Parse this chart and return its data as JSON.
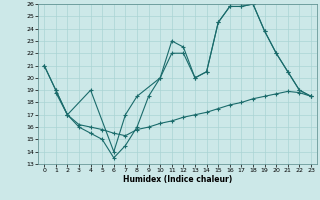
{
  "xlabel": "Humidex (Indice chaleur)",
  "bg_color": "#cce8e8",
  "line_color": "#1a6b6b",
  "grid_color": "#aad4d4",
  "xlim": [
    -0.5,
    23.5
  ],
  "ylim": [
    13,
    26
  ],
  "xticks": [
    0,
    1,
    2,
    3,
    4,
    5,
    6,
    7,
    8,
    9,
    10,
    11,
    12,
    13,
    14,
    15,
    16,
    17,
    18,
    19,
    20,
    21,
    22,
    23
  ],
  "yticks": [
    13,
    14,
    15,
    16,
    17,
    18,
    19,
    20,
    21,
    22,
    23,
    24,
    25,
    26
  ],
  "line1_x": [
    0,
    1,
    2,
    4,
    6,
    7,
    8,
    10,
    11,
    12,
    13,
    14,
    15,
    16,
    17,
    18,
    19,
    20,
    21,
    22,
    23
  ],
  "line1_y": [
    21,
    19,
    17,
    19,
    14,
    17,
    18.5,
    20,
    23,
    22.5,
    20,
    20.5,
    24.5,
    25.8,
    25.8,
    26,
    23.8,
    22,
    20.5,
    19,
    18.5
  ],
  "line2_x": [
    0,
    1,
    2,
    3,
    4,
    5,
    6,
    7,
    8,
    9,
    10,
    11,
    12,
    13,
    14,
    15,
    16,
    17,
    18,
    19,
    20,
    21,
    22,
    23
  ],
  "line2_y": [
    21,
    19,
    17,
    16,
    15.5,
    15,
    13.5,
    14.5,
    16,
    18.5,
    20,
    22,
    22,
    20,
    20.5,
    24.5,
    25.8,
    25.8,
    26,
    23.8,
    22,
    20.5,
    19,
    18.5
  ],
  "line3_x": [
    1,
    2,
    3,
    4,
    5,
    6,
    7,
    8,
    9,
    10,
    11,
    12,
    13,
    14,
    15,
    16,
    17,
    18,
    19,
    20,
    21,
    22,
    23
  ],
  "line3_y": [
    18.8,
    17,
    16.2,
    16,
    15.8,
    15.5,
    15.3,
    15.8,
    16,
    16.3,
    16.5,
    16.8,
    17,
    17.2,
    17.5,
    17.8,
    18,
    18.3,
    18.5,
    18.7,
    18.9,
    18.8,
    18.5
  ]
}
